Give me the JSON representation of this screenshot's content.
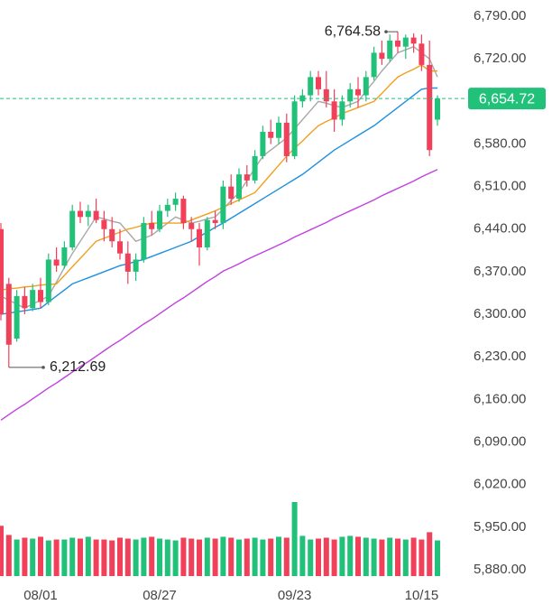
{
  "chart_data": {
    "type": "candlestick",
    "categories": [
      null,
      null,
      null,
      null,
      null,
      "08/01",
      null,
      null,
      null,
      null,
      null,
      null,
      null,
      null,
      null,
      null,
      null,
      null,
      null,
      null,
      "08/27",
      null,
      null,
      null,
      null,
      null,
      null,
      null,
      null,
      null,
      null,
      null,
      null,
      null,
      null,
      null,
      null,
      "09/23",
      null,
      null,
      null,
      null,
      null,
      null,
      null,
      null,
      null,
      null,
      null,
      null,
      null,
      null,
      null,
      "10/15",
      null,
      null
    ],
    "open": [
      6440,
      6350,
      6260,
      6330,
      6310,
      6340,
      6320,
      6390,
      6380,
      6410,
      6470,
      6460,
      6470,
      6455,
      6440,
      6420,
      6400,
      6370,
      6390,
      6450,
      6440,
      6470,
      6480,
      6490,
      6450,
      6440,
      6410,
      6455,
      6450,
      6510,
      6490,
      6530,
      6520,
      6560,
      6600,
      6590,
      6615,
      6560,
      6650,
      6660,
      6690,
      6670,
      6650,
      6620,
      6650,
      6670,
      6660,
      6690,
      6730,
      6720,
      6750,
      6740,
      6755,
      6745,
      6710,
      6620
    ],
    "high": [
      6450,
      6360,
      6340,
      6345,
      6350,
      6360,
      6400,
      6410,
      6420,
      6480,
      6485,
      6480,
      6490,
      6470,
      6460,
      6440,
      6420,
      6400,
      6460,
      6470,
      6480,
      6490,
      6500,
      6495,
      6460,
      6450,
      6460,
      6470,
      6520,
      6530,
      6540,
      6545,
      6570,
      6610,
      6620,
      6625,
      6630,
      6660,
      6670,
      6700,
      6700,
      6700,
      6670,
      6660,
      6680,
      6690,
      6700,
      6740,
      6750,
      6760,
      6764.58,
      6760,
      6762,
      6760,
      6750,
      6660
    ],
    "low": [
      6290,
      6212.69,
      6255,
      6300,
      6305,
      6310,
      6315,
      6370,
      6375,
      6405,
      6450,
      6445,
      6450,
      6420,
      6410,
      6390,
      6350,
      6355,
      6385,
      6430,
      6435,
      6460,
      6470,
      6440,
      6420,
      6380,
      6405,
      6440,
      6440,
      6480,
      6485,
      6510,
      6515,
      6555,
      6580,
      6580,
      6550,
      6555,
      6640,
      6650,
      6660,
      6640,
      6600,
      6610,
      6640,
      6640,
      6650,
      6685,
      6710,
      6715,
      6730,
      6720,
      6730,
      6700,
      6560,
      6610
    ],
    "close": [
      6300,
      6250,
      6330,
      6310,
      6340,
      6320,
      6390,
      6380,
      6410,
      6470,
      6460,
      6470,
      6455,
      6440,
      6420,
      6400,
      6370,
      6390,
      6450,
      6440,
      6470,
      6480,
      6490,
      6450,
      6440,
      6410,
      6455,
      6450,
      6510,
      6490,
      6530,
      6520,
      6560,
      6600,
      6590,
      6615,
      6560,
      6650,
      6660,
      6690,
      6670,
      6650,
      6620,
      6650,
      6670,
      6660,
      6690,
      6730,
      6720,
      6750,
      6740,
      6755,
      6745,
      6710,
      6570,
      6654.72
    ],
    "volume": [
      5.5,
      4.5,
      4.0,
      4.2,
      4.1,
      4.3,
      3.9,
      4.0,
      4.0,
      4.2,
      4.1,
      4.3,
      4.0,
      4.0,
      3.9,
      4.2,
      4.1,
      4.0,
      4.2,
      4.3,
      4.1,
      4.0,
      3.9,
      4.2,
      4.1,
      4.0,
      4.2,
      4.1,
      4.3,
      4.2,
      4.0,
      4.1,
      4.2,
      4.0,
      4.1,
      4.3,
      4.2,
      8.1,
      4.4,
      4.0,
      4.1,
      4.2,
      4.0,
      4.3,
      4.4,
      4.3,
      4.2,
      4.1,
      4.0,
      4.2,
      4.1,
      4.0,
      4.2,
      4.0,
      4.8,
      3.9
    ],
    "up_color": "#22c17a",
    "down_color": "#f0405a",
    "lines": [
      {
        "color": "#a8a8a8",
        "values": [
          6330,
          6323,
          6317,
          6310,
          6317,
          6323,
          6330,
          6353,
          6377,
          6400,
          6420,
          6440,
          6460,
          6457,
          6453,
          6450,
          6435,
          6420,
          6425,
          6430,
          6440,
          6450,
          6460,
          6455,
          6450,
          6453,
          6457,
          6460,
          6473,
          6487,
          6500,
          6520,
          6540,
          6560,
          6570,
          6580,
          6590,
          6605,
          6620,
          6635,
          6650,
          6647,
          6643,
          6640,
          6645,
          6650,
          6667,
          6683,
          6700,
          6715,
          6730,
          6735,
          6740,
          6730,
          6720,
          6690
        ]
      },
      {
        "color": "#f0a020",
        "values": [
          6340,
          6342,
          6343,
          6345,
          6346,
          6348,
          6349,
          6350,
          6364,
          6378,
          6392,
          6406,
          6420,
          6425,
          6430,
          6435,
          6440,
          6443,
          6447,
          6450,
          6450,
          6450,
          6450,
          6450,
          6455,
          6460,
          6465,
          6470,
          6476,
          6482,
          6488,
          6494,
          6500,
          6515,
          6530,
          6545,
          6560,
          6573,
          6585,
          6598,
          6610,
          6617,
          6623,
          6630,
          6635,
          6640,
          6645,
          6650,
          6663,
          6677,
          6690,
          6697,
          6703,
          6710,
          6700,
          6700
        ]
      },
      {
        "color": "#1e90e0",
        "values": [
          6300,
          6302,
          6304,
          6306,
          6308,
          6310,
          6320,
          6330,
          6340,
          6350,
          6355,
          6360,
          6365,
          6370,
          6375,
          6380,
          6383,
          6387,
          6390,
          6395,
          6400,
          6405,
          6410,
          6415,
          6420,
          6428,
          6435,
          6443,
          6450,
          6458,
          6466,
          6474,
          6482,
          6490,
          6498,
          6506,
          6514,
          6522,
          6530,
          6540,
          6550,
          6560,
          6570,
          6578,
          6586,
          6594,
          6602,
          6610,
          6620,
          6630,
          6640,
          6650,
          6660,
          6670,
          6672,
          6672
        ]
      },
      {
        "color": "#c040e0",
        "values": [
          6126,
          6135,
          6144,
          6152,
          6161,
          6170,
          6179,
          6187,
          6196,
          6205,
          6214,
          6222,
          6231,
          6240,
          6249,
          6257,
          6266,
          6275,
          6284,
          6292,
          6301,
          6310,
          6319,
          6327,
          6336,
          6345,
          6354,
          6362,
          6371,
          6377,
          6383,
          6390,
          6396,
          6402,
          6408,
          6414,
          6420,
          6427,
          6433,
          6439,
          6445,
          6451,
          6458,
          6464,
          6470,
          6476,
          6482,
          6488,
          6495,
          6501,
          6507,
          6513,
          6519,
          6526,
          6532,
          6538
        ]
      }
    ],
    "high_label": {
      "value": 6764.58,
      "label": "6,764.58"
    },
    "low_label": {
      "value": 6212.69,
      "label": "6,212.69"
    },
    "last_price": {
      "value": 6654.72,
      "label": "6,654.72",
      "color": "#22c17a"
    },
    "ylim": [
      5880,
      6790
    ],
    "yticks": [
      {
        "value": 6790,
        "label": "6,790.00"
      },
      {
        "value": 6720,
        "label": "6,720.00"
      },
      {
        "value": 6650,
        "label": "6,650.00"
      },
      {
        "value": 6580,
        "label": "6,580.00"
      },
      {
        "value": 6510,
        "label": "6,510.00"
      },
      {
        "value": 6440,
        "label": "6,440.00"
      },
      {
        "value": 6370,
        "label": "6,370.00"
      },
      {
        "value": 6300,
        "label": "6,300.00"
      },
      {
        "value": 6230,
        "label": "6,230.00"
      },
      {
        "value": 6160,
        "label": "6,160.00"
      },
      {
        "value": 6090,
        "label": "6,090.00"
      },
      {
        "value": 6020,
        "label": "6,020.00"
      },
      {
        "value": 5950,
        "label": "5,950.00"
      },
      {
        "value": 5880,
        "label": "5,880.00"
      }
    ],
    "grid": false
  }
}
